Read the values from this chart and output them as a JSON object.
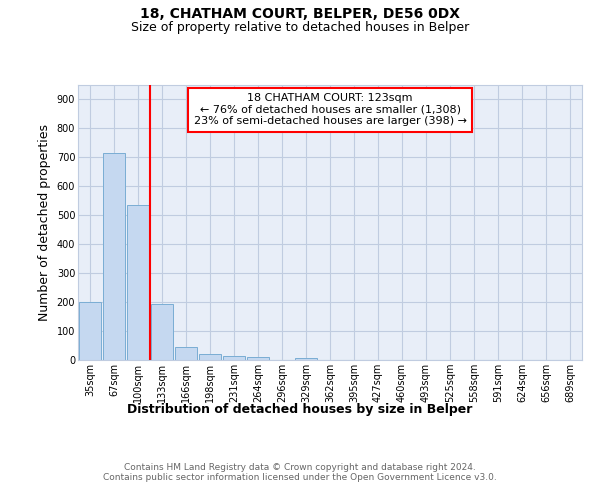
{
  "title": "18, CHATHAM COURT, BELPER, DE56 0DX",
  "subtitle": "Size of property relative to detached houses in Belper",
  "xlabel": "Distribution of detached houses by size in Belper",
  "ylabel": "Number of detached properties",
  "categories": [
    "35sqm",
    "67sqm",
    "100sqm",
    "133sqm",
    "166sqm",
    "198sqm",
    "231sqm",
    "264sqm",
    "296sqm",
    "329sqm",
    "362sqm",
    "395sqm",
    "427sqm",
    "460sqm",
    "493sqm",
    "525sqm",
    "558sqm",
    "591sqm",
    "624sqm",
    "656sqm",
    "689sqm"
  ],
  "values": [
    200,
    715,
    535,
    192,
    45,
    22,
    15,
    10,
    0,
    8,
    0,
    0,
    0,
    0,
    0,
    0,
    0,
    0,
    0,
    0,
    0
  ],
  "bar_color": "#c5d8f0",
  "bar_edge_color": "#7aadd4",
  "bar_alpha": 1.0,
  "red_line_index": 3,
  "annotation_line1": "18 CHATHAM COURT: 123sqm",
  "annotation_line2": "← 76% of detached houses are smaller (1,308)",
  "annotation_line3": "23% of semi-detached houses are larger (398) →",
  "ylim": [
    0,
    950
  ],
  "yticks": [
    0,
    100,
    200,
    300,
    400,
    500,
    600,
    700,
    800,
    900
  ],
  "footer_text": "Contains HM Land Registry data © Crown copyright and database right 2024.\nContains public sector information licensed under the Open Government Licence v3.0.",
  "plot_bg_color": "#e8eef8",
  "fig_bg_color": "#ffffff",
  "grid_color": "#c0cce0",
  "title_fontsize": 10,
  "subtitle_fontsize": 9,
  "axis_label_fontsize": 9,
  "tick_fontsize": 7,
  "annotation_fontsize": 8,
  "footer_fontsize": 6.5
}
